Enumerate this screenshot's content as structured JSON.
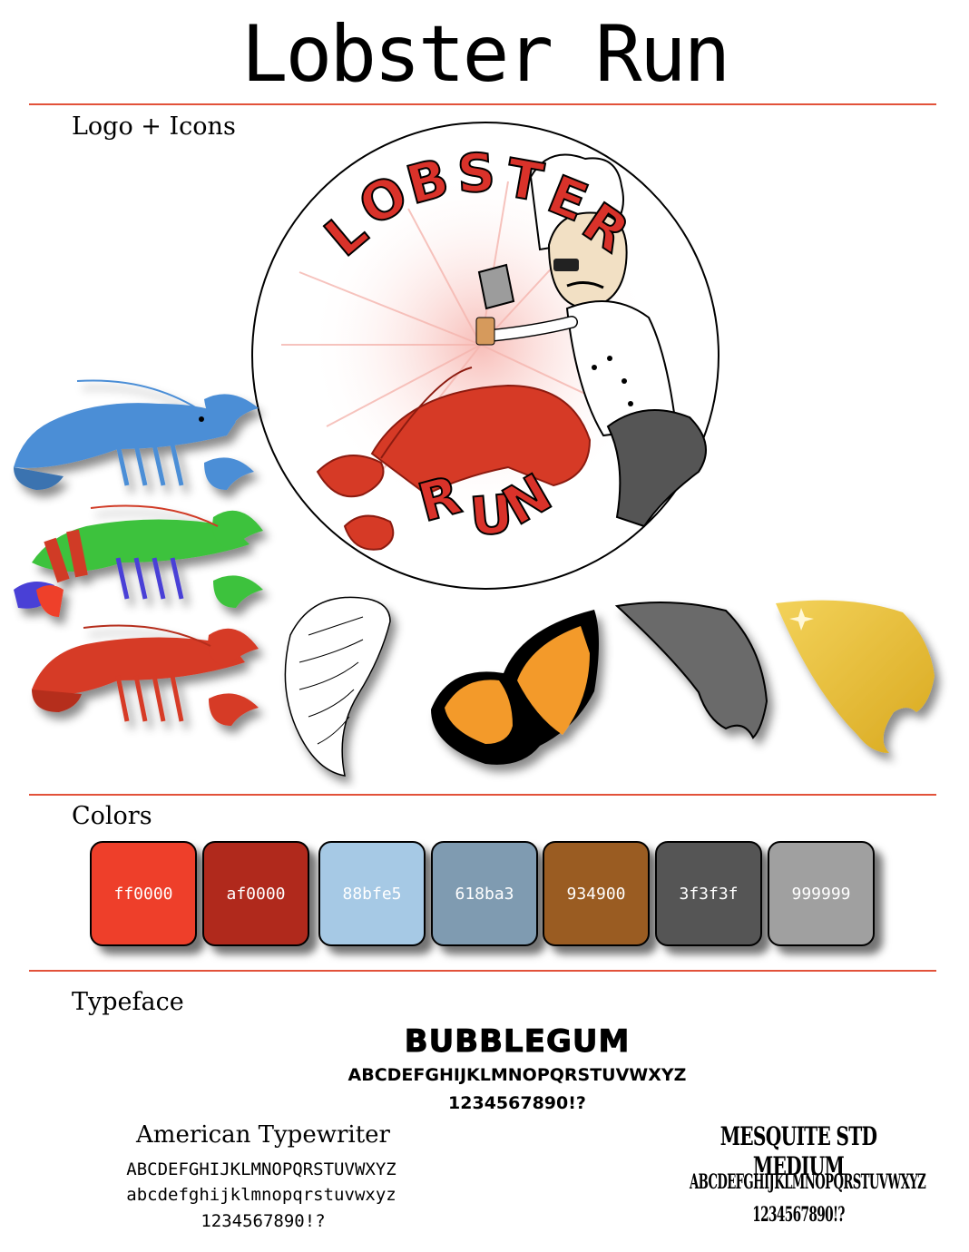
{
  "page": {
    "title": "Lobster Run"
  },
  "sections": {
    "logo_icons": "Logo + Icons",
    "colors": "Colors",
    "typeface": "Typeface"
  },
  "logo": {
    "top_text": "LOBSTER",
    "bottom_text": "RUN"
  },
  "icons": [
    {
      "name": "blue-lobster-icon"
    },
    {
      "name": "green-lobster-icon"
    },
    {
      "name": "red-lobster-icon"
    },
    {
      "name": "angel-wing-icon"
    },
    {
      "name": "butterfly-wing-icon"
    },
    {
      "name": "bat-wing-icon"
    },
    {
      "name": "golden-wing-icon"
    }
  ],
  "colors": [
    {
      "label": "ff0000",
      "hex": "#ee3f2a"
    },
    {
      "label": "af0000",
      "hex": "#b0291c"
    },
    {
      "label": "88bfe5",
      "hex": "#a6c9e5"
    },
    {
      "label": "618ba3",
      "hex": "#7f9bb1"
    },
    {
      "label": "934900",
      "hex": "#9a5c22"
    },
    {
      "label": "3f3f3f",
      "hex": "#555555"
    },
    {
      "label": "999999",
      "hex": "#a0a0a0"
    }
  ],
  "typefaces": {
    "bubblegum": {
      "name": "BUBBLEGUM",
      "upper": "ABCDEFGHIJKLMNOPQRSTUVWXYZ",
      "digits": "1234567890!?"
    },
    "american_typewriter": {
      "name": "American Typewriter",
      "upper": "ABCDEFGHIJKLMNOPQRSTUVWXYZ",
      "lower": "abcdefghijklmnopqrstuvwxyz",
      "digits": "1234567890!?"
    },
    "mesquite": {
      "name": "MESQUITE STD MEDIUM",
      "upper": "ABCDEFGHIJKLMNOPQRSTUVWXYZ",
      "digits": "1234567890!?"
    }
  }
}
